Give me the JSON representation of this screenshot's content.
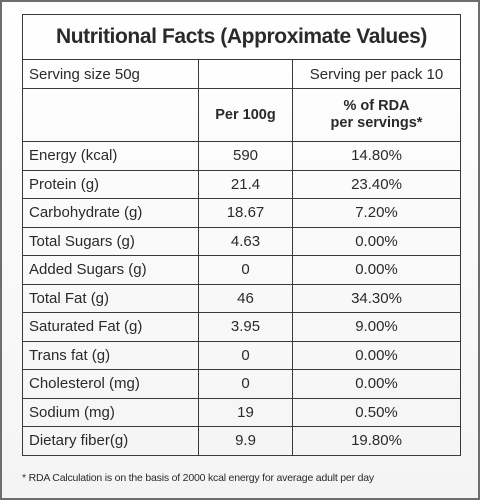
{
  "title": "Nutritional Facts (Approximate Values)",
  "serving": {
    "size": "Serving size 50g",
    "per_pack": "Serving per pack 10"
  },
  "header": {
    "per_100g": "Per 100g",
    "rda": [
      "% of RDA",
      "per servings*"
    ]
  },
  "rows": [
    [
      "Energy (kcal)",
      590,
      "14.80%"
    ],
    [
      "Protein (g)",
      21.4,
      "23.40%"
    ],
    [
      "Carbohydrate (g)",
      18.67,
      "7.20%"
    ],
    [
      "Total Sugars (g)",
      4.63,
      "0.00%"
    ],
    [
      "Added Sugars (g)",
      0,
      "0.00%"
    ],
    [
      "Total Fat (g)",
      46,
      "34.30%"
    ],
    [
      "Saturated Fat (g)",
      3.95,
      "9.00%"
    ],
    [
      "Trans fat (g)",
      0,
      "0.00%"
    ],
    [
      "Cholesterol (mg)",
      0,
      "0.00%"
    ],
    [
      "Sodium (mg)",
      19,
      "0.50%"
    ],
    [
      "Dietary fiber(g)",
      9.9,
      "19.80%"
    ]
  ],
  "footnote": "* RDA Calculation is on the basis of 2000 kcal energy for average adult per day"
}
